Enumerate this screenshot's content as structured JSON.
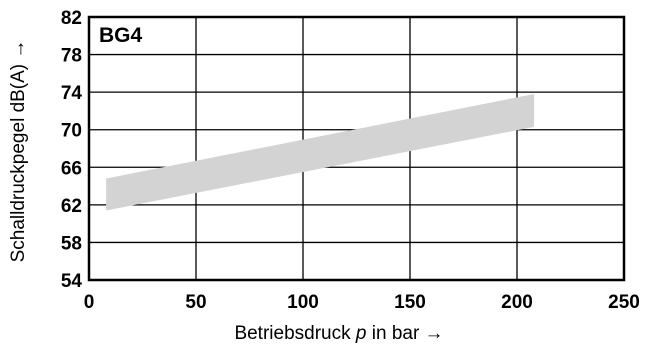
{
  "chart_data": {
    "type": "area",
    "panel_label": "BG4",
    "xlabel_prefix": "Betriebsdruck ",
    "xlabel_var": "p",
    "xlabel_suffix": " in bar →",
    "ylabel": "Schalldruckpegel dB(A) →",
    "xlim": [
      0,
      250
    ],
    "ylim": [
      54,
      82
    ],
    "xticks": [
      0,
      50,
      100,
      150,
      200,
      250
    ],
    "yticks": [
      54,
      58,
      62,
      66,
      70,
      74,
      78,
      82
    ],
    "grid": true,
    "band": {
      "x": [
        8,
        208
      ],
      "upper": [
        64.8,
        73.8
      ],
      "lower": [
        61.4,
        70.3
      ],
      "color": "#d3d3d3"
    }
  }
}
